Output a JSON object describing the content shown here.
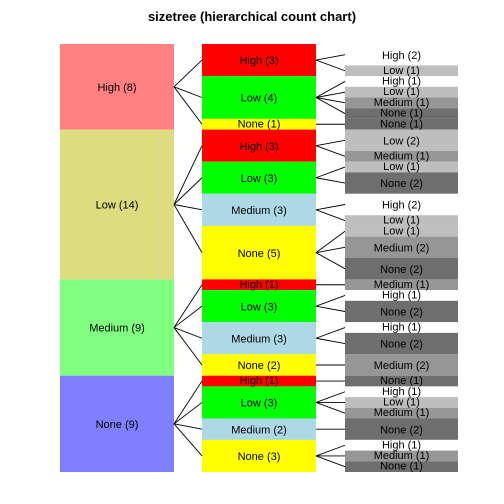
{
  "chart_data": {
    "type": "sizetree",
    "title": "sizetree (hierarchical count chart)",
    "total": 40,
    "level1": [
      {
        "label": "High (8)",
        "name": "High",
        "value": 8,
        "color": "#ff8080"
      },
      {
        "label": "Low (14)",
        "name": "Low",
        "value": 14,
        "color": "#dddd80"
      },
      {
        "label": "Medium (9)",
        "name": "Medium",
        "value": 9,
        "color": "#80ff80"
      },
      {
        "label": "None (9)",
        "name": "None",
        "value": 9,
        "color": "#8080ff"
      }
    ],
    "level2": [
      {
        "parent": 0,
        "label": "High (3)",
        "name": "High",
        "value": 3,
        "color": "#ff0000"
      },
      {
        "parent": 0,
        "label": "Low (4)",
        "name": "Low",
        "value": 4,
        "color": "#00ff00"
      },
      {
        "parent": 0,
        "label": "None (1)",
        "name": "None",
        "value": 1,
        "color": "#ffff00"
      },
      {
        "parent": 1,
        "label": "High (3)",
        "name": "High",
        "value": 3,
        "color": "#ff0000"
      },
      {
        "parent": 1,
        "label": "Low (3)",
        "name": "Low",
        "value": 3,
        "color": "#00ff00"
      },
      {
        "parent": 1,
        "label": "Medium (3)",
        "name": "Medium",
        "value": 3,
        "color": "#add8e6"
      },
      {
        "parent": 1,
        "label": "None (5)",
        "name": "None",
        "value": 5,
        "color": "#ffff00"
      },
      {
        "parent": 2,
        "label": "High (1)",
        "name": "High",
        "value": 1,
        "color": "#ff0000"
      },
      {
        "parent": 2,
        "label": "Low (3)",
        "name": "Low",
        "value": 3,
        "color": "#00ff00"
      },
      {
        "parent": 2,
        "label": "Medium (3)",
        "name": "Medium",
        "value": 3,
        "color": "#add8e6"
      },
      {
        "parent": 2,
        "label": "None (2)",
        "name": "None",
        "value": 2,
        "color": "#ffff00"
      },
      {
        "parent": 3,
        "label": "High (1)",
        "name": "High",
        "value": 1,
        "color": "#ff0000"
      },
      {
        "parent": 3,
        "label": "Low (3)",
        "name": "Low",
        "value": 3,
        "color": "#00ff00"
      },
      {
        "parent": 3,
        "label": "Medium (2)",
        "name": "Medium",
        "value": 2,
        "color": "#add8e6"
      },
      {
        "parent": 3,
        "label": "None (3)",
        "name": "None",
        "value": 3,
        "color": "#ffff00"
      }
    ],
    "level3": [
      {
        "parent": 0,
        "label": "High (2)",
        "value": 2,
        "color": "#ffffff"
      },
      {
        "parent": 0,
        "label": "Low (1)",
        "value": 1,
        "color": "#bebebe"
      },
      {
        "parent": 1,
        "label": "High (1)",
        "value": 1,
        "color": "#ffffff"
      },
      {
        "parent": 1,
        "label": "Low (1)",
        "value": 1,
        "color": "#bebebe"
      },
      {
        "parent": 1,
        "label": "Medium (1)",
        "value": 1,
        "color": "#969696"
      },
      {
        "parent": 1,
        "label": "None (1)",
        "value": 1,
        "color": "#6e6e6e"
      },
      {
        "parent": 2,
        "label": "None (1)",
        "value": 1,
        "color": "#6e6e6e"
      },
      {
        "parent": 3,
        "label": "Low (2)",
        "value": 2,
        "color": "#bebebe"
      },
      {
        "parent": 3,
        "label": "Medium (1)",
        "value": 1,
        "color": "#969696"
      },
      {
        "parent": 4,
        "label": "Low (1)",
        "value": 1,
        "color": "#bebebe"
      },
      {
        "parent": 4,
        "label": "None (2)",
        "value": 2,
        "color": "#6e6e6e"
      },
      {
        "parent": 5,
        "label": "High (2)",
        "value": 2,
        "color": "#ffffff"
      },
      {
        "parent": 5,
        "label": "Low (1)",
        "value": 1,
        "color": "#bebebe"
      },
      {
        "parent": 6,
        "label": "Low (1)",
        "value": 1,
        "color": "#bebebe"
      },
      {
        "parent": 6,
        "label": "Medium (2)",
        "value": 2,
        "color": "#969696"
      },
      {
        "parent": 6,
        "label": "None (2)",
        "value": 2,
        "color": "#6e6e6e"
      },
      {
        "parent": 7,
        "label": "Medium (1)",
        "value": 1,
        "color": "#969696"
      },
      {
        "parent": 8,
        "label": "High (1)",
        "value": 1,
        "color": "#ffffff"
      },
      {
        "parent": 8,
        "label": "None (2)",
        "value": 2,
        "color": "#6e6e6e"
      },
      {
        "parent": 9,
        "label": "High (1)",
        "value": 1,
        "color": "#ffffff"
      },
      {
        "parent": 9,
        "label": "None (2)",
        "value": 2,
        "color": "#6e6e6e"
      },
      {
        "parent": 10,
        "label": "Medium (2)",
        "value": 2,
        "color": "#969696"
      },
      {
        "parent": 11,
        "label": "None (1)",
        "value": 1,
        "color": "#6e6e6e"
      },
      {
        "parent": 12,
        "label": "High (1)",
        "value": 1,
        "color": "#ffffff"
      },
      {
        "parent": 12,
        "label": "Low (1)",
        "value": 1,
        "color": "#bebebe"
      },
      {
        "parent": 12,
        "label": "Medium (1)",
        "value": 1,
        "color": "#969696"
      },
      {
        "parent": 13,
        "label": "None (2)",
        "value": 2,
        "color": "#6e6e6e"
      },
      {
        "parent": 14,
        "label": "High (1)",
        "value": 1,
        "color": "#ffffff"
      },
      {
        "parent": 14,
        "label": "Medium (1)",
        "value": 1,
        "color": "#969696"
      },
      {
        "parent": 14,
        "label": "None (1)",
        "value": 1,
        "color": "#6e6e6e"
      }
    ]
  }
}
